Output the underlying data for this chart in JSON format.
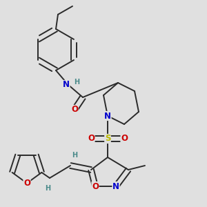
{
  "bg_color": "#e0e0e0",
  "bond_color": "#2a2a2a",
  "bond_width": 1.4,
  "atom_colors": {
    "N": "#0000cc",
    "O": "#cc0000",
    "S": "#bbbb00",
    "H": "#4a8a8a",
    "C": "#2a2a2a"
  },
  "font_size_atom": 8.5,
  "font_size_small": 7.0,
  "font_size_methyl": 8.0
}
